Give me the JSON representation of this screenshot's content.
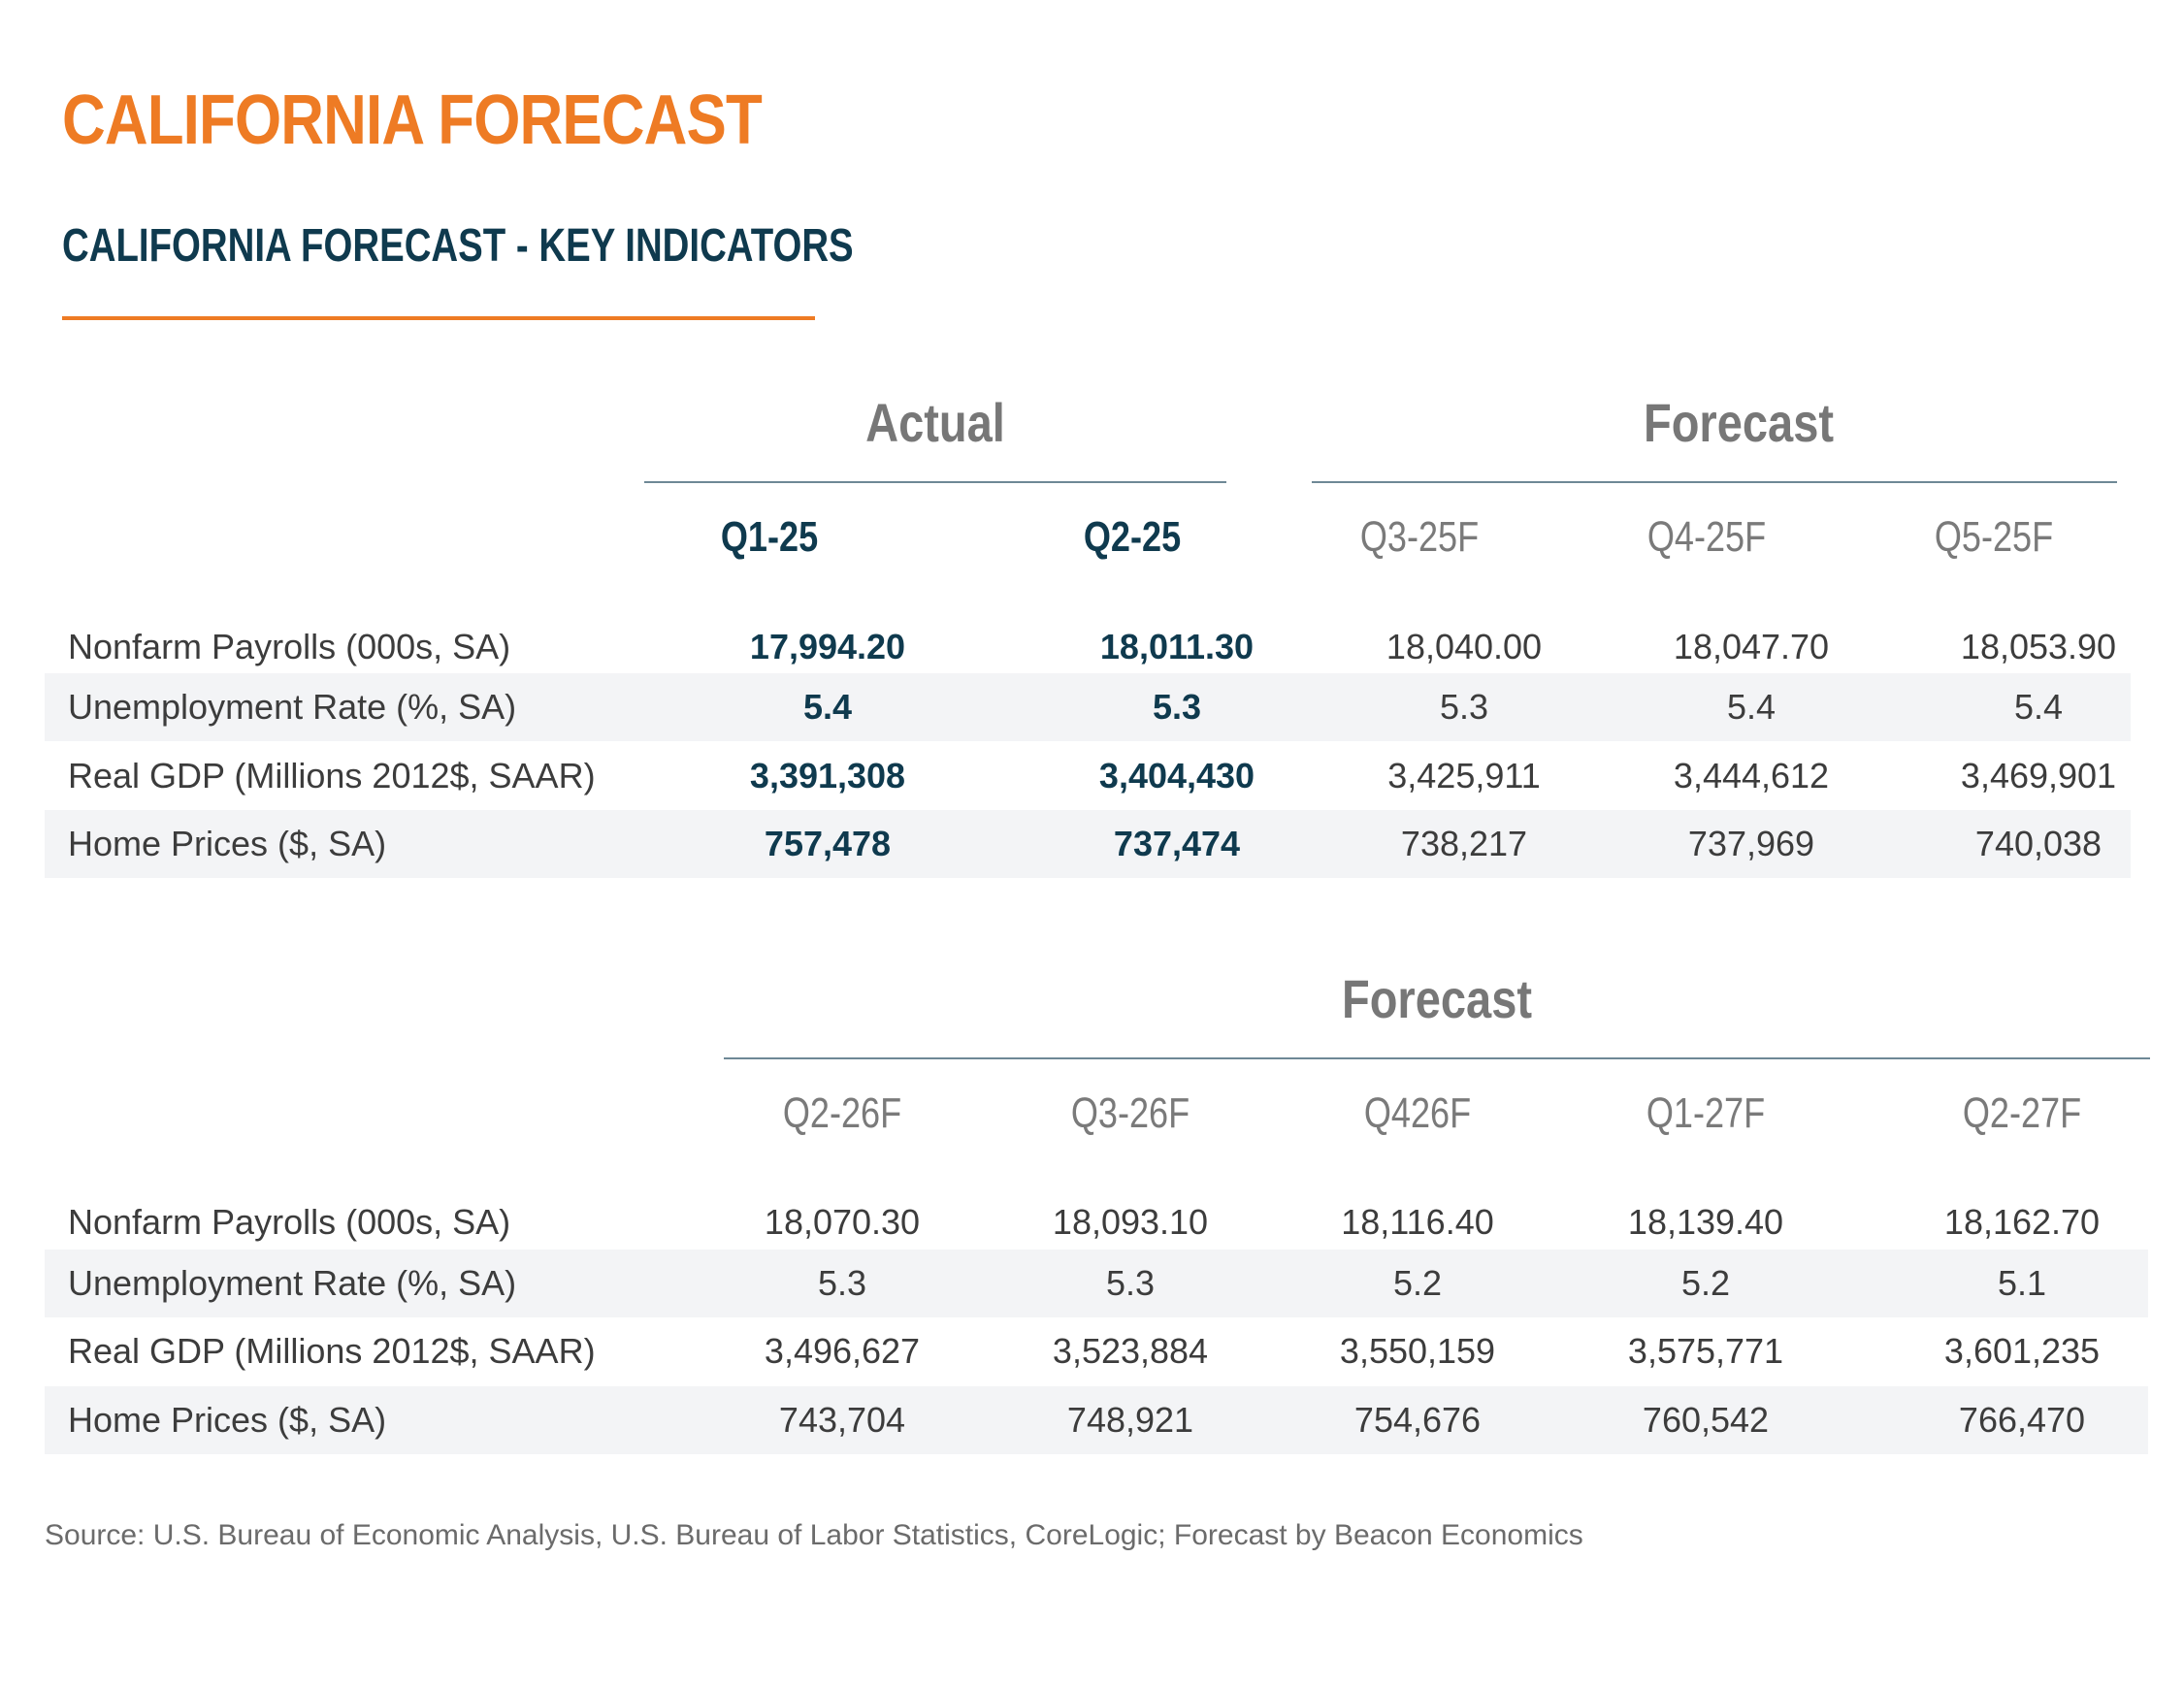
{
  "title": "CALIFORNIA FORECAST",
  "subtitle": "CALIFORNIA FORECAST - KEY INDICATORS",
  "colors": {
    "accent": "#ee7b24",
    "navy": "#0f3a4e",
    "gray": "#777777",
    "rowShade": "#f3f4f6"
  },
  "table1": {
    "actual_label": "Actual",
    "forecast_label": "Forecast",
    "columns": [
      "Q1-25",
      "Q2-25",
      "Q3-25F",
      "Q4-25F",
      "Q5-25F"
    ],
    "rows": [
      {
        "label": "Nonfarm Payrolls (000s, SA)",
        "values": [
          "17,994.20",
          "18,011.30",
          "18,040.00",
          "18,047.70",
          "18,053.90"
        ]
      },
      {
        "label": "Unemployment Rate (%, SA)",
        "values": [
          "5.4",
          "5.3",
          "5.3",
          "5.4",
          "5.4"
        ]
      },
      {
        "label": "Real GDP (Millions 2012$, SAAR)",
        "values": [
          "3,391,308",
          "3,404,430",
          "3,425,911",
          "3,444,612",
          "3,469,901"
        ]
      },
      {
        "label": "Home Prices ($, SA)",
        "values": [
          "757,478",
          "737,474",
          "738,217",
          "737,969",
          "740,038"
        ]
      }
    ]
  },
  "table2": {
    "forecast_label": "Forecast",
    "columns": [
      "Q2-26F",
      "Q3-26F",
      "Q426F",
      "Q1-27F",
      "Q2-27F"
    ],
    "rows": [
      {
        "label": "Nonfarm Payrolls (000s, SA)",
        "values": [
          "18,070.30",
          "18,093.10",
          "18,116.40",
          "18,139.40",
          "18,162.70"
        ]
      },
      {
        "label": "Unemployment Rate (%, SA)",
        "values": [
          "5.3",
          "5.3",
          "5.2",
          "5.2",
          "5.1"
        ]
      },
      {
        "label": "Real GDP (Millions 2012$, SAAR)",
        "values": [
          "3,496,627",
          "3,523,884",
          "3,550,159",
          "3,575,771",
          "3,601,235"
        ]
      },
      {
        "label": "Home Prices ($, SA)",
        "values": [
          "743,704",
          "748,921",
          "754,676",
          "760,542",
          "766,470"
        ]
      }
    ]
  },
  "source": "Source: U.S. Bureau of Economic Analysis, U.S. Bureau of Labor Statistics, CoreLogic; Forecast by Beacon Economics"
}
